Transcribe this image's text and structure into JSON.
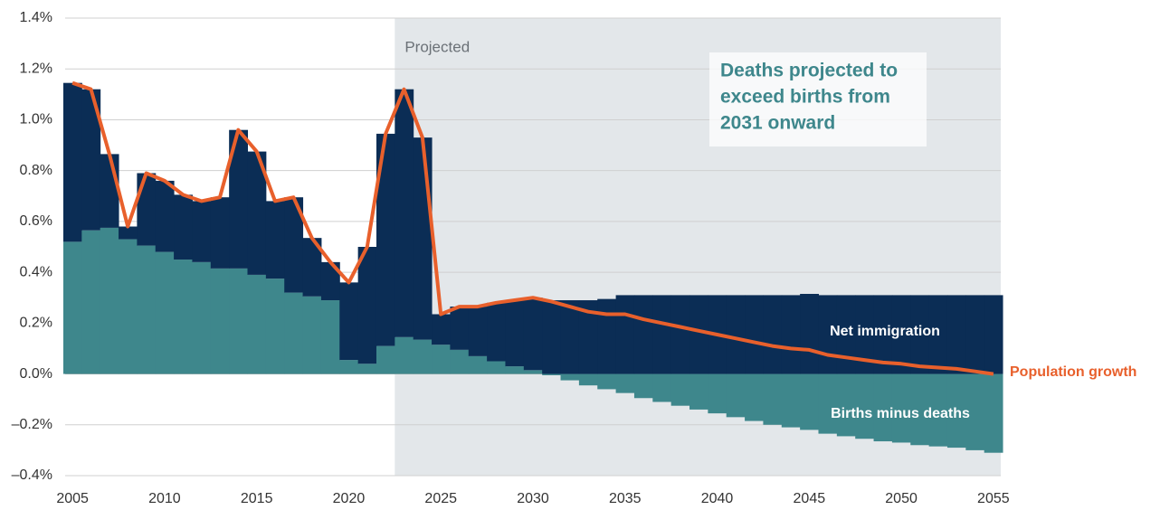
{
  "chart_data": {
    "type": "bar",
    "x": [
      2005,
      2006,
      2007,
      2008,
      2009,
      2010,
      2011,
      2012,
      2013,
      2014,
      2015,
      2016,
      2017,
      2018,
      2019,
      2020,
      2021,
      2022,
      2023,
      2024,
      2025,
      2026,
      2027,
      2028,
      2029,
      2030,
      2031,
      2032,
      2033,
      2034,
      2035,
      2036,
      2037,
      2038,
      2039,
      2040,
      2041,
      2042,
      2043,
      2044,
      2045,
      2046,
      2047,
      2048,
      2049,
      2050,
      2051,
      2052,
      2053,
      2054,
      2055
    ],
    "series": [
      {
        "name": "Births minus deaths",
        "color": "#3e878c",
        "values": [
          0.52,
          0.565,
          0.575,
          0.53,
          0.505,
          0.48,
          0.45,
          0.44,
          0.415,
          0.415,
          0.39,
          0.375,
          0.32,
          0.305,
          0.29,
          0.055,
          0.04,
          0.11,
          0.145,
          0.135,
          0.115,
          0.095,
          0.07,
          0.05,
          0.03,
          0.015,
          -0.005,
          -0.025,
          -0.045,
          -0.06,
          -0.075,
          -0.095,
          -0.11,
          -0.125,
          -0.14,
          -0.155,
          -0.17,
          -0.185,
          -0.2,
          -0.21,
          -0.22,
          -0.235,
          -0.245,
          -0.255,
          -0.265,
          -0.27,
          -0.28,
          -0.285,
          -0.29,
          -0.3,
          -0.31
        ]
      },
      {
        "name": "Net immigration",
        "color": "#0b2d55",
        "values": [
          0.625,
          0.555,
          0.29,
          0.05,
          0.285,
          0.28,
          0.255,
          0.24,
          0.28,
          0.545,
          0.485,
          0.305,
          0.375,
          0.23,
          0.15,
          0.305,
          0.46,
          0.835,
          0.975,
          0.795,
          0.12,
          0.17,
          0.195,
          0.23,
          0.26,
          0.285,
          0.29,
          0.29,
          0.29,
          0.295,
          0.31,
          0.31,
          0.31,
          0.31,
          0.31,
          0.31,
          0.31,
          0.31,
          0.31,
          0.31,
          0.315,
          0.31,
          0.31,
          0.31,
          0.31,
          0.31,
          0.31,
          0.31,
          0.31,
          0.31,
          0.31
        ]
      },
      {
        "name": "Population growth",
        "color": "#e8602c",
        "type": "line",
        "values": [
          1.145,
          1.12,
          0.865,
          0.58,
          0.79,
          0.76,
          0.705,
          0.68,
          0.695,
          0.96,
          0.875,
          0.68,
          0.695,
          0.535,
          0.44,
          0.36,
          0.5,
          0.945,
          1.12,
          0.93,
          0.235,
          0.265,
          0.265,
          0.28,
          0.29,
          0.3,
          0.285,
          0.265,
          0.245,
          0.235,
          0.235,
          0.215,
          0.2,
          0.185,
          0.17,
          0.155,
          0.14,
          0.125,
          0.11,
          0.1,
          0.095,
          0.075,
          0.065,
          0.055,
          0.045,
          0.04,
          0.03,
          0.025,
          0.02,
          0.01,
          0.0
        ]
      }
    ],
    "xlim": [
      2004.6,
      2055.4
    ],
    "xticks": [
      2005,
      2010,
      2015,
      2020,
      2025,
      2030,
      2035,
      2040,
      2045,
      2050,
      2055
    ],
    "ylim": [
      -0.4,
      1.4
    ],
    "yticks": [
      {
        "value": -0.4,
        "label": "–0.4%"
      },
      {
        "value": -0.2,
        "label": "–0.2%"
      },
      {
        "value": 0,
        "label": "0.0%"
      },
      {
        "value": 0.2,
        "label": "0.2%"
      },
      {
        "value": 0.4,
        "label": "0.4%"
      },
      {
        "value": 0.6,
        "label": "0.6%"
      },
      {
        "value": 0.8,
        "label": "0.8%"
      },
      {
        "value": 1.0,
        "label": "1.0%"
      },
      {
        "value": 1.2,
        "label": "1.2%"
      },
      {
        "value": 1.4,
        "label": "1.4%"
      }
    ],
    "grid": true,
    "shaded": {
      "label": "Projected",
      "start": 2022.5,
      "color": "#e3e7ea"
    },
    "annotation": {
      "lines": [
        "Deaths projected to",
        "exceed births from",
        "2031 onward"
      ]
    }
  }
}
